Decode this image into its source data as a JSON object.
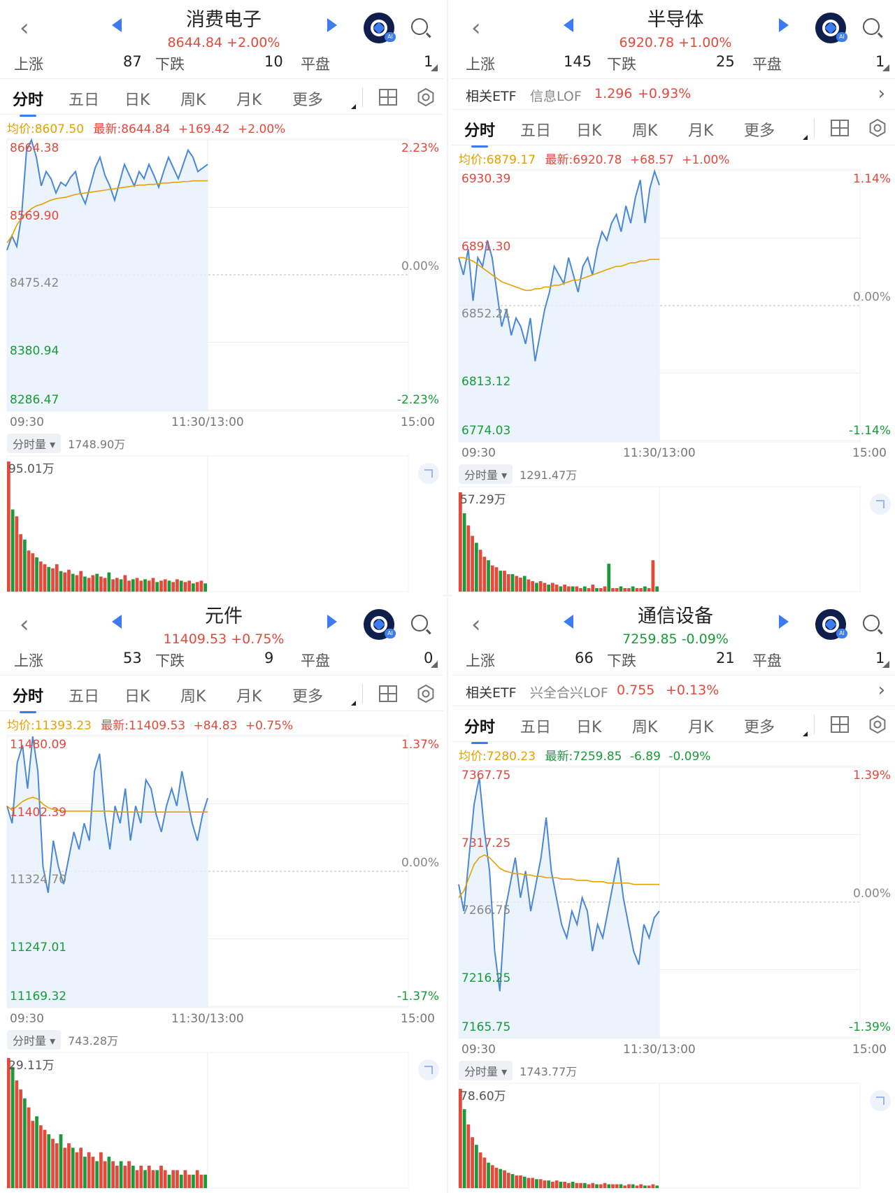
{
  "colors": {
    "up": "#e34a3c",
    "down": "#1a9a3a",
    "line": "#4a88d6",
    "avg": "#e6a100",
    "accent": "#3d7cf0"
  },
  "labels": {
    "up": "上涨",
    "down": "下跌",
    "flat": "平盘",
    "etf": "相关ETF",
    "tabs": [
      "分时",
      "五日",
      "日K",
      "周K",
      "月K",
      "更多"
    ],
    "avg_prefix": "均价:",
    "new_prefix": "最新:",
    "vol_select": "分时量 ▾",
    "time_start": "09:30",
    "time_mid": "11:30/13:00",
    "time_end": "15:00"
  },
  "panels": [
    {
      "title": "消费电子",
      "price_line": "8644.84   +2.00%",
      "price_dir": "up",
      "up_count": "87",
      "down_count": "10",
      "flat_count": "1",
      "etf": null,
      "avg_text": "8607.50",
      "new_text": "8644.84",
      "chg_text": "+169.42",
      "pct_text": "+2.00%",
      "y_labels": [
        "8664.38",
        "8569.90",
        "8475.42",
        "8380.94",
        "8286.47"
      ],
      "pct_top": "2.23%",
      "pct_mid": "0.00%",
      "pct_bot": "-2.23%",
      "vol_total": "1748.90万",
      "vol_max": "95.01万",
      "chart_data": {
        "type": "line",
        "y_range": [
          8286.47,
          8664.38
        ],
        "base": 8475.42,
        "progress": 0.5,
        "price": [
          8510,
          8530,
          8515,
          8560,
          8650,
          8664,
          8640,
          8600,
          8620,
          8610,
          8590,
          8605,
          8600,
          8612,
          8620,
          8590,
          8575,
          8600,
          8625,
          8640,
          8615,
          8600,
          8580,
          8605,
          8630,
          8615,
          8600,
          8620,
          8610,
          8630,
          8615,
          8598,
          8620,
          8640,
          8625,
          8610,
          8630,
          8650,
          8640,
          8620,
          8625,
          8630
        ],
        "avg": [
          8520,
          8530,
          8545,
          8555,
          8562,
          8568,
          8572,
          8574,
          8577,
          8580,
          8582,
          8583,
          8584,
          8586,
          8588,
          8589,
          8590,
          8591,
          8592,
          8593,
          8594,
          8595,
          8596,
          8597,
          8598,
          8599,
          8600,
          8601,
          8601,
          8602,
          8602,
          8603,
          8604,
          8604,
          8605,
          8605,
          8606,
          8606,
          8607,
          8607,
          8607,
          8607
        ],
        "vol": [
          95,
          60,
          55,
          42,
          38,
          30,
          28,
          25,
          22,
          20,
          18,
          17,
          20,
          15,
          14,
          16,
          13,
          12,
          15,
          11,
          10,
          12,
          13,
          11,
          10,
          14,
          9,
          10,
          9,
          12,
          8,
          9,
          10,
          8,
          9,
          8,
          10,
          7,
          8,
          9,
          8,
          7,
          9,
          8,
          7,
          8,
          6,
          7,
          8,
          6
        ]
      }
    },
    {
      "title": "半导体",
      "price_line": "6920.78   +1.00%",
      "price_dir": "up",
      "up_count": "145",
      "down_count": "25",
      "flat_count": "1",
      "etf": {
        "name": "信息LOF",
        "price": "1.296",
        "pct": "+0.93%"
      },
      "avg_text": "6879.17",
      "new_text": "6920.78",
      "chg_text": "+68.57",
      "pct_text": "+1.00%",
      "y_labels": [
        "6930.39",
        "6891.30",
        "6852.21",
        "6813.12",
        "6774.03"
      ],
      "pct_top": "1.14%",
      "pct_mid": "0.00%",
      "pct_bot": "-1.14%",
      "vol_total": "1291.47万",
      "vol_max": "57.29万",
      "chart_data": {
        "type": "line",
        "y_range": [
          6774.03,
          6930.39
        ],
        "base": 6852.21,
        "progress": 0.5,
        "price": [
          6880,
          6870,
          6885,
          6855,
          6880,
          6875,
          6890,
          6880,
          6860,
          6840,
          6850,
          6835,
          6845,
          6840,
          6830,
          6845,
          6820,
          6835,
          6850,
          6860,
          6875,
          6870,
          6865,
          6880,
          6870,
          6860,
          6875,
          6880,
          6870,
          6885,
          6895,
          6890,
          6900,
          6905,
          6895,
          6910,
          6900,
          6915,
          6925,
          6900,
          6920,
          6930,
          6922
        ],
        "avg": [
          6880,
          6880,
          6879,
          6878,
          6876,
          6874,
          6872,
          6870,
          6868,
          6866,
          6865,
          6864,
          6863,
          6862,
          6861,
          6861,
          6862,
          6862,
          6863,
          6863,
          6864,
          6864,
          6865,
          6866,
          6867,
          6867,
          6868,
          6869,
          6870,
          6871,
          6872,
          6873,
          6874,
          6875,
          6875,
          6876,
          6877,
          6877,
          6878,
          6878,
          6879,
          6879,
          6879
        ],
        "vol": [
          57,
          45,
          38,
          32,
          28,
          24,
          20,
          18,
          15,
          14,
          12,
          12,
          10,
          10,
          9,
          8,
          9,
          7,
          6,
          5,
          6,
          5,
          4,
          5,
          4,
          3,
          4,
          3,
          3,
          3,
          2,
          3,
          2,
          4,
          2,
          2,
          3,
          16,
          2,
          2,
          3,
          2,
          2,
          3,
          2,
          2,
          3,
          2,
          18,
          3
        ]
      }
    },
    {
      "title": "元件",
      "price_line": "11409.53   +0.75%",
      "price_dir": "up",
      "up_count": "53",
      "down_count": "9",
      "flat_count": "0",
      "etf": null,
      "avg_text": "11393.23",
      "new_text": "11409.53",
      "chg_text": "+84.83",
      "pct_text": "+0.75%",
      "y_labels": [
        "11480.09",
        "11402.39",
        "11324.70",
        "11247.01",
        "11169.32"
      ],
      "pct_top": "1.37%",
      "pct_mid": "0.00%",
      "pct_bot": "-1.37%",
      "vol_total": "743.28万",
      "vol_max": "29.11万",
      "chart_data": {
        "type": "line",
        "y_range": [
          11169.32,
          11480.09
        ],
        "base": 11324.7,
        "progress": 0.5,
        "price": [
          11400,
          11380,
          11450,
          11470,
          11420,
          11480,
          11440,
          11330,
          11300,
          11360,
          11330,
          11310,
          11340,
          11370,
          11350,
          11380,
          11360,
          11440,
          11460,
          11390,
          11350,
          11400,
          11380,
          11420,
          11360,
          11400,
          11380,
          11430,
          11420,
          11390,
          11370,
          11400,
          11420,
          11400,
          11440,
          11410,
          11380,
          11360,
          11390,
          11409
        ],
        "avg": [
          11400,
          11395,
          11400,
          11405,
          11408,
          11410,
          11408,
          11402,
          11398,
          11396,
          11395,
          11394,
          11394,
          11394,
          11394,
          11394,
          11394,
          11394,
          11394,
          11394,
          11394,
          11393,
          11393,
          11393,
          11393,
          11393,
          11393,
          11393,
          11393,
          11393,
          11393,
          11393,
          11393,
          11393,
          11393,
          11393,
          11393,
          11393,
          11393,
          11393
        ],
        "vol": [
          29,
          27,
          24,
          22,
          20,
          18,
          15,
          16,
          14,
          13,
          12,
          11,
          10,
          12,
          9,
          10,
          9,
          8,
          9,
          7,
          8,
          7,
          6,
          8,
          6,
          7,
          6,
          5,
          6,
          5,
          6,
          5,
          4,
          5,
          4,
          5,
          4,
          4,
          5,
          4,
          3,
          4,
          4,
          3,
          4,
          3,
          3,
          4,
          3,
          3
        ]
      }
    },
    {
      "title": "通信设备",
      "price_line": "7259.85   -0.09%",
      "price_dir": "down",
      "up_count": "66",
      "down_count": "21",
      "flat_count": "1",
      "etf": {
        "name": "兴全合兴LOF",
        "price": "0.755",
        "pct": "+0.13%"
      },
      "avg_text": "7280.23",
      "new_text": "7259.85",
      "chg_text": "-6.89",
      "pct_text": "-0.09%",
      "y_labels": [
        "7367.75",
        "7317.25",
        "7266.75",
        "7216.25",
        "7165.75"
      ],
      "pct_top": "1.39%",
      "pct_mid": "0.00%",
      "pct_bot": "-1.39%",
      "vol_total": "1743.77万",
      "vol_max": "78.60万",
      "chart_data": {
        "type": "line",
        "y_range": [
          7165.75,
          7367.75
        ],
        "base": 7266.75,
        "progress": 0.5,
        "price": [
          7280,
          7260,
          7300,
          7340,
          7360,
          7320,
          7290,
          7230,
          7200,
          7260,
          7280,
          7300,
          7270,
          7290,
          7260,
          7280,
          7300,
          7330,
          7290,
          7270,
          7250,
          7240,
          7260,
          7250,
          7270,
          7260,
          7230,
          7250,
          7240,
          7260,
          7280,
          7300,
          7270,
          7250,
          7230,
          7220,
          7250,
          7240,
          7255,
          7260
        ],
        "avg": [
          7270,
          7275,
          7285,
          7295,
          7300,
          7302,
          7300,
          7296,
          7292,
          7290,
          7289,
          7288,
          7288,
          7287,
          7287,
          7286,
          7286,
          7285,
          7285,
          7285,
          7284,
          7284,
          7284,
          7283,
          7283,
          7283,
          7282,
          7282,
          7282,
          7281,
          7281,
          7281,
          7281,
          7281,
          7280,
          7280,
          7280,
          7280,
          7280,
          7280
        ],
        "vol": [
          78,
          62,
          50,
          40,
          34,
          28,
          24,
          20,
          18,
          16,
          15,
          14,
          12,
          11,
          10,
          10,
          9,
          8,
          8,
          7,
          7,
          6,
          6,
          5,
          6,
          5,
          5,
          4,
          5,
          4,
          4,
          4,
          3,
          4,
          3,
          3,
          4,
          3,
          3,
          3,
          3,
          2,
          3,
          3,
          2,
          3,
          2,
          2,
          3,
          2
        ]
      }
    }
  ]
}
